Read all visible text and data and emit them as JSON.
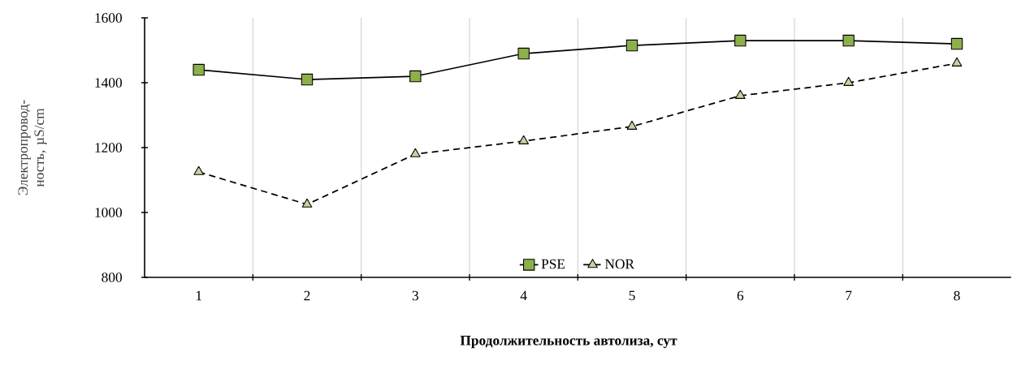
{
  "chart_data": {
    "type": "line",
    "xlabel": "**Продолжительность автолиза, сут**",
    "ylabel": "Электропровод-ность, µS/cm",
    "categories": [
      "1",
      "2",
      "3",
      "4",
      "5",
      "6",
      "7",
      "8"
    ],
    "series": [
      {
        "name": "PSE",
        "color": "#8db04a",
        "marker": "square",
        "line_style": "solid",
        "values": [
          1440,
          1410,
          1420,
          1490,
          1515,
          1530,
          1530,
          1520
        ]
      },
      {
        "name": "NOR",
        "color": "#c4d4a0",
        "marker": "triangle",
        "line_style": "dashed",
        "values": [
          1125,
          1025,
          1180,
          1220,
          1265,
          1360,
          1400,
          1460
        ]
      }
    ],
    "ylim": [
      800,
      1600
    ],
    "yticks": [
      800,
      1000,
      1200,
      1400,
      1600
    ],
    "grid": "x",
    "legend": "bottom"
  }
}
